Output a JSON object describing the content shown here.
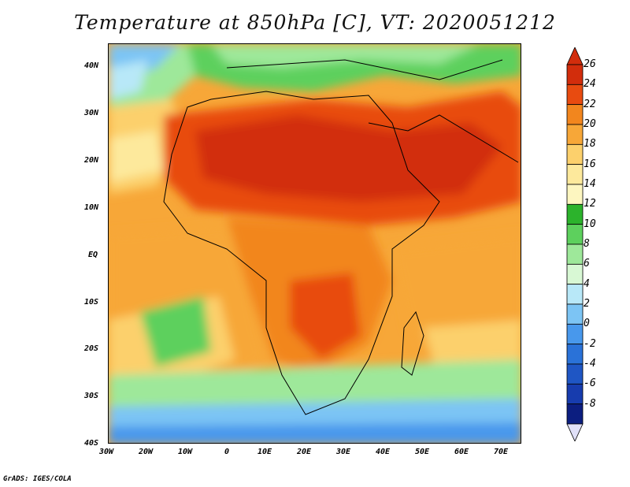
{
  "title": "Temperature at 850hPa [C], VT: 2020051212",
  "credit": "GrADS: IGES/COLA",
  "lat_labels": [
    "40N",
    "30N",
    "20N",
    "10N",
    "EQ",
    "10S",
    "20S",
    "30S",
    "40S"
  ],
  "lon_labels": [
    "30W",
    "20W",
    "10W",
    "0",
    "10E",
    "20E",
    "30E",
    "40E",
    "50E",
    "60E",
    "70E"
  ],
  "colorbar_labels": [
    "26",
    "24",
    "22",
    "20",
    "18",
    "16",
    "14",
    "12",
    "10",
    "8",
    "6",
    "4",
    "2",
    "0",
    "-2",
    "-4",
    "-6",
    "-8"
  ],
  "colorbar_colors": [
    "#d22d0c",
    "#e84b10",
    "#f2861e",
    "#f7a738",
    "#fcd06c",
    "#fde99c",
    "#fdf6c0",
    "#2cb32c",
    "#5dd05d",
    "#9ee89a",
    "#d8f8d4",
    "#b8e8f8",
    "#7cc4f4",
    "#4898ec",
    "#2a72d8",
    "#1f56c4",
    "#173cae",
    "#0c1e80"
  ]
}
